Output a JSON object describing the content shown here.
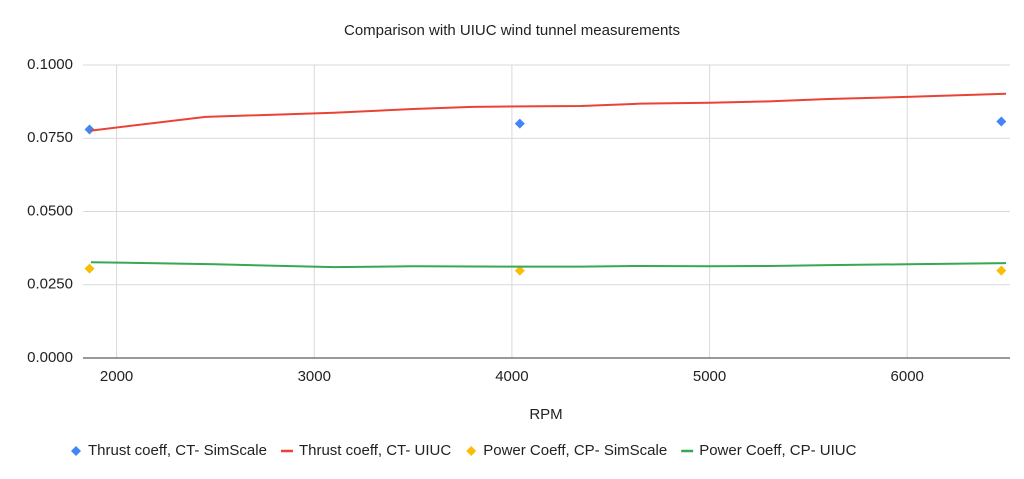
{
  "chart_data": {
    "type": "line",
    "title": "Comparison with UIUC wind tunnel measurements",
    "x_label": "RPM",
    "xlim": [
      1830,
      6520
    ],
    "xticks": [
      2000,
      3000,
      4000,
      5000,
      6000
    ],
    "ylim": [
      0,
      0.1
    ],
    "yticks": [
      {
        "value": 0,
        "label": "0.0000"
      },
      {
        "value": 0.025,
        "label": "0.0250"
      },
      {
        "value": 0.05,
        "label": "0.0500"
      },
      {
        "value": 0.075,
        "label": "0.0750"
      },
      {
        "value": 0.1,
        "label": "0.1000"
      }
    ],
    "grid": true,
    "legend": "bottom",
    "series": [
      {
        "name": "Thrust coeff, CT- SimScale",
        "color": "#4285f4",
        "style": "marker",
        "x": [
          1863,
          4040,
          6476
        ],
        "values": [
          0.078,
          0.08,
          0.0807
        ]
      },
      {
        "name": "Thrust coeff, CT- UIUC",
        "color": "#ea4335",
        "style": "line",
        "x": [
          1870,
          2450,
          3100,
          3500,
          3800,
          4050,
          4350,
          4650,
          5000,
          5300,
          5600,
          6000,
          6500
        ],
        "values": [
          0.0776,
          0.0823,
          0.0837,
          0.085,
          0.0857,
          0.0859,
          0.086,
          0.0868,
          0.0871,
          0.0876,
          0.0884,
          0.0891,
          0.0902
        ]
      },
      {
        "name": "Power Coeff, CP- SimScale",
        "color": "#fbbc04",
        "style": "marker",
        "x": [
          1863,
          4040,
          6476
        ],
        "values": [
          0.0305,
          0.0298,
          0.0298
        ]
      },
      {
        "name": "Power Coeff, CP- UIUC",
        "color": "#34a853",
        "style": "line",
        "x": [
          1870,
          2500,
          3100,
          3500,
          4000,
          4350,
          4650,
          5000,
          5300,
          5600,
          6000,
          6500
        ],
        "values": [
          0.0327,
          0.032,
          0.031,
          0.0313,
          0.0312,
          0.0312,
          0.0314,
          0.0313,
          0.0314,
          0.0317,
          0.032,
          0.0324
        ]
      }
    ]
  }
}
